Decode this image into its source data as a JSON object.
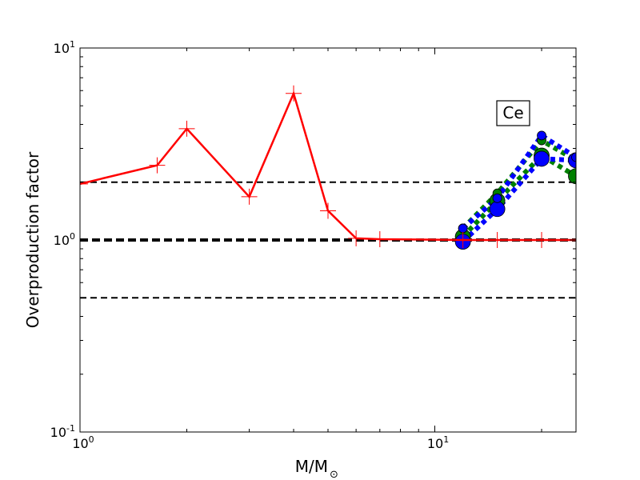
{
  "chart_data": {
    "type": "line",
    "title": "",
    "xlabel": "M/M",
    "xlabel_subscript": "⊙",
    "ylabel": "Overproduction factor",
    "xscale": "log",
    "yscale": "log",
    "xlim": [
      1,
      25
    ],
    "ylim": [
      0.1,
      10
    ],
    "x_ticks": [
      {
        "value": 1,
        "base": "10",
        "exp": "0"
      },
      {
        "value": 10,
        "base": "10",
        "exp": "1"
      }
    ],
    "y_ticks": [
      {
        "value": 0.1,
        "base": "10",
        "exp": "-1"
      },
      {
        "value": 1,
        "base": "10",
        "exp": "0"
      },
      {
        "value": 10,
        "base": "10",
        "exp": "1"
      }
    ],
    "annotation": "Ce",
    "reference_lines": [
      {
        "y": 2,
        "style": "dashed",
        "weight": "thin"
      },
      {
        "y": 1,
        "style": "dashed",
        "weight": "thick"
      },
      {
        "y": 0.5,
        "style": "dashed",
        "weight": "thin"
      }
    ],
    "series": [
      {
        "color": "#ff0000",
        "line": "solid",
        "marker": "plus",
        "x": [
          1.0,
          1.65,
          2.0,
          3.0,
          4.0,
          5.0,
          6.0,
          7.0,
          12.0,
          15.0,
          20.0,
          25.0
        ],
        "y": [
          1.96,
          2.45,
          3.8,
          1.68,
          5.8,
          1.42,
          1.02,
          1.01,
          1.0,
          1.0,
          1.0,
          1.0
        ]
      },
      {
        "color": "#008000",
        "line": "dotted",
        "marker": "circle",
        "points": [
          {
            "x": 12.0,
            "y": 1.04,
            "size": "large"
          },
          {
            "x": 15.0,
            "y": 1.6,
            "size": "large"
          },
          {
            "x": 20.0,
            "y": 2.75,
            "size": "large"
          },
          {
            "x": 25.0,
            "y": 2.15,
            "size": "large"
          },
          {
            "x": 12.0,
            "y": 1.15,
            "size": "small"
          },
          {
            "x": 15.0,
            "y": 1.75,
            "size": "small"
          },
          {
            "x": 20.0,
            "y": 3.3,
            "size": "small"
          },
          {
            "x": 25.0,
            "y": 2.6,
            "size": "small"
          }
        ]
      },
      {
        "color": "#0000ff",
        "line": "dotted",
        "marker": "circle",
        "points": [
          {
            "x": 12.0,
            "y": 0.98,
            "size": "large"
          },
          {
            "x": 15.0,
            "y": 1.45,
            "size": "large"
          },
          {
            "x": 20.0,
            "y": 2.65,
            "size": "large"
          },
          {
            "x": 25.0,
            "y": 2.6,
            "size": "large"
          },
          {
            "x": 12.0,
            "y": 1.15,
            "size": "small"
          },
          {
            "x": 15.0,
            "y": 1.65,
            "size": "small"
          },
          {
            "x": 20.0,
            "y": 3.5,
            "size": "small"
          },
          {
            "x": 25.0,
            "y": 2.7,
            "size": "small"
          }
        ]
      }
    ]
  }
}
